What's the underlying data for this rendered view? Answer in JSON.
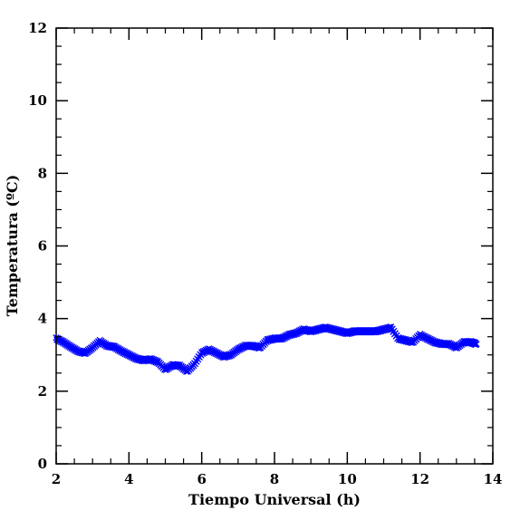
{
  "chart_data": {
    "type": "scatter",
    "xlabel": "Tiempo Universal (h)",
    "ylabel": "Temperatura (ºC)",
    "xlim": [
      2,
      14
    ],
    "ylim": [
      0,
      12
    ],
    "x_ticks": [
      "2",
      "4",
      "6",
      "8",
      "10",
      "12",
      "14"
    ],
    "y_ticks": [
      "0",
      "2",
      "4",
      "6",
      "8",
      "10",
      "12"
    ],
    "grid": false,
    "marker": "x",
    "color": "#0000ff",
    "x": [
      2.0,
      2.2,
      2.4,
      2.6,
      2.8,
      3.0,
      3.2,
      3.4,
      3.6,
      3.8,
      4.0,
      4.2,
      4.4,
      4.6,
      4.8,
      5.0,
      5.2,
      5.4,
      5.6,
      5.8,
      6.0,
      6.2,
      6.4,
      6.6,
      6.8,
      7.0,
      7.2,
      7.4,
      7.6,
      7.8,
      8.0,
      8.2,
      8.4,
      8.6,
      8.8,
      9.0,
      9.2,
      9.4,
      9.6,
      9.8,
      10.0,
      10.2,
      10.4,
      10.6,
      10.8,
      11.0,
      11.2,
      11.4,
      11.6,
      11.8,
      12.0,
      12.2,
      12.4,
      12.6,
      12.8,
      13.0,
      13.2,
      13.4,
      13.55
    ],
    "y": [
      3.45,
      3.35,
      3.22,
      3.1,
      3.05,
      3.2,
      3.38,
      3.25,
      3.22,
      3.1,
      3.0,
      2.9,
      2.85,
      2.88,
      2.8,
      2.6,
      2.72,
      2.7,
      2.55,
      2.75,
      3.05,
      3.15,
      3.05,
      2.95,
      3.0,
      3.15,
      3.25,
      3.25,
      3.2,
      3.4,
      3.45,
      3.45,
      3.55,
      3.6,
      3.7,
      3.65,
      3.7,
      3.75,
      3.7,
      3.65,
      3.6,
      3.65,
      3.65,
      3.65,
      3.65,
      3.7,
      3.75,
      3.45,
      3.4,
      3.35,
      3.55,
      3.45,
      3.35,
      3.3,
      3.3,
      3.2,
      3.35,
      3.35,
      3.3
    ]
  }
}
